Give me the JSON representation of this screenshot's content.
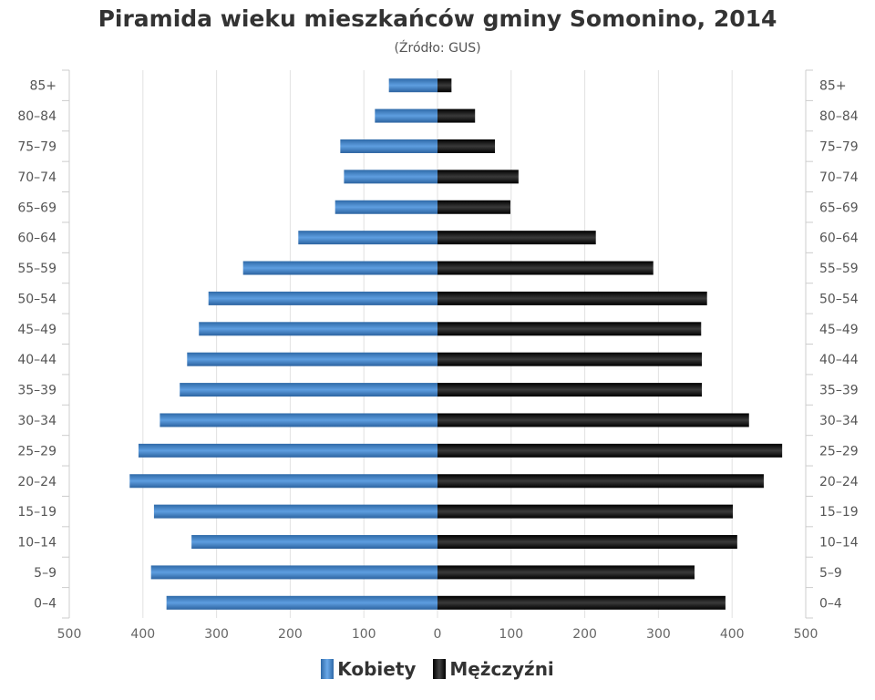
{
  "chart_data": {
    "type": "bar",
    "orientation": "horizontal-population-pyramid",
    "title": "Piramida wieku mieszkańców gminy Somonino, 2014",
    "subtitle": "(Źródło: GUS)",
    "categories": [
      "0-4",
      "5-9",
      "10-14",
      "15-19",
      "20-24",
      "25-29",
      "30-34",
      "35-39",
      "40-44",
      "45-49",
      "50-54",
      "55-59",
      "60-64",
      "65-69",
      "70-74",
      "75-79",
      "80-84",
      "85+"
    ],
    "series": [
      {
        "name": "Kobiety",
        "color": "#3f7fc0",
        "side": "left",
        "values": [
          368,
          389,
          334,
          385,
          418,
          406,
          377,
          350,
          340,
          324,
          311,
          264,
          189,
          139,
          127,
          132,
          85,
          66
        ]
      },
      {
        "name": "Mężczyźni",
        "color": "#111111",
        "side": "right",
        "values": [
          391,
          349,
          407,
          401,
          443,
          468,
          423,
          359,
          359,
          358,
          366,
          293,
          215,
          99,
          110,
          78,
          51,
          19
        ]
      }
    ],
    "xticks": [
      "500",
      "400",
      "300",
      "200",
      "100",
      "0",
      "100",
      "200",
      "300",
      "400",
      "500"
    ],
    "xlim": [
      -500,
      500
    ],
    "grid": true,
    "legend": "bottom-center"
  }
}
